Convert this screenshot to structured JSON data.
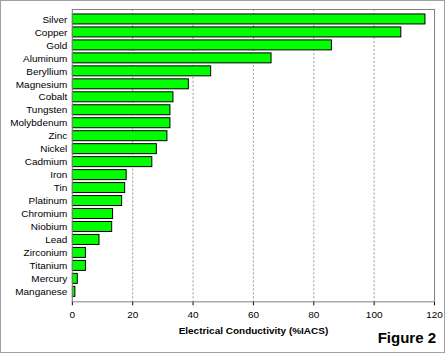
{
  "chart_data": {
    "type": "bar",
    "orientation": "horizontal",
    "categories": [
      "Silver",
      "Copper",
      "Gold",
      "Aluminum",
      "Beryllium",
      "Magnesium",
      "Cobalt",
      "Tungsten",
      "Molybdenum",
      "Zinc",
      "Nickel",
      "Cadmium",
      "Iron",
      "Tin",
      "Platinum",
      "Chromium",
      "Niobium",
      "Lead",
      "Zirconium",
      "Titanium",
      "Mercury",
      "Manganese"
    ],
    "values": [
      117,
      109,
      86,
      66,
      46,
      38.6,
      33.5,
      32.5,
      32.5,
      31.5,
      28,
      26.5,
      18,
      17.5,
      16.5,
      13.5,
      13.2,
      9,
      4.5,
      4.5,
      1.8,
      1
    ],
    "color": "#00ff00",
    "xlabel": "Electrical Conductivity (%IACS)",
    "xlim": [
      0,
      120
    ],
    "xticks": [
      0,
      20,
      40,
      60,
      80,
      100,
      120
    ],
    "grid": true,
    "annotation": "Figure 2"
  }
}
